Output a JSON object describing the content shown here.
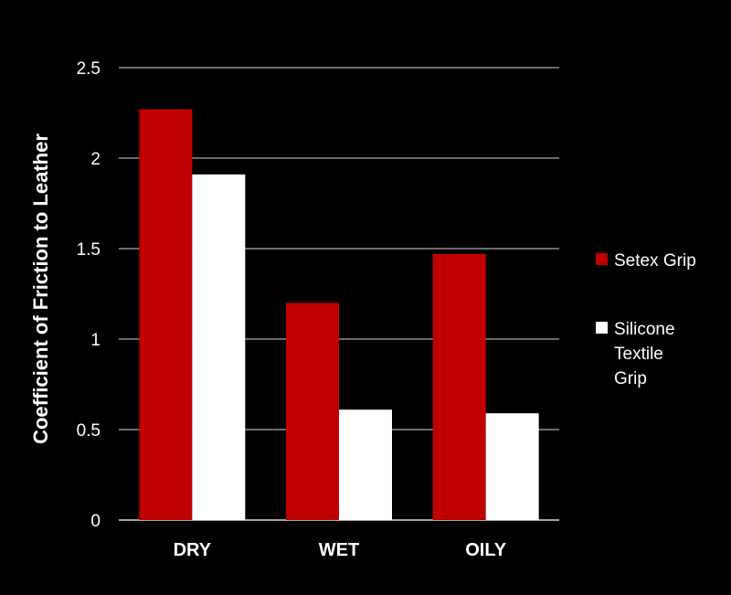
{
  "chart_data": {
    "type": "bar",
    "title": "",
    "xlabel": "",
    "ylabel": "Coefficient of Friction to Leather",
    "categories": [
      "DRY",
      "WET",
      "OILY"
    ],
    "series": [
      {
        "name": "Setex Grip",
        "values": [
          2.27,
          1.2,
          1.47
        ],
        "color": "#c00000"
      },
      {
        "name": "Silicone Textile Grip",
        "values": [
          1.91,
          0.61,
          0.59
        ],
        "color": "#ffffff"
      }
    ],
    "ylim": [
      0,
      2.5
    ],
    "yticks": [
      0,
      0.5,
      1,
      1.5,
      2,
      2.5
    ],
    "ytick_labels": [
      "0",
      "0.5",
      "1",
      "1.5",
      "2",
      "2.5"
    ],
    "grid": true,
    "legend_position": "right",
    "background": "#000000",
    "gridline_color": "#d9d9d9"
  }
}
